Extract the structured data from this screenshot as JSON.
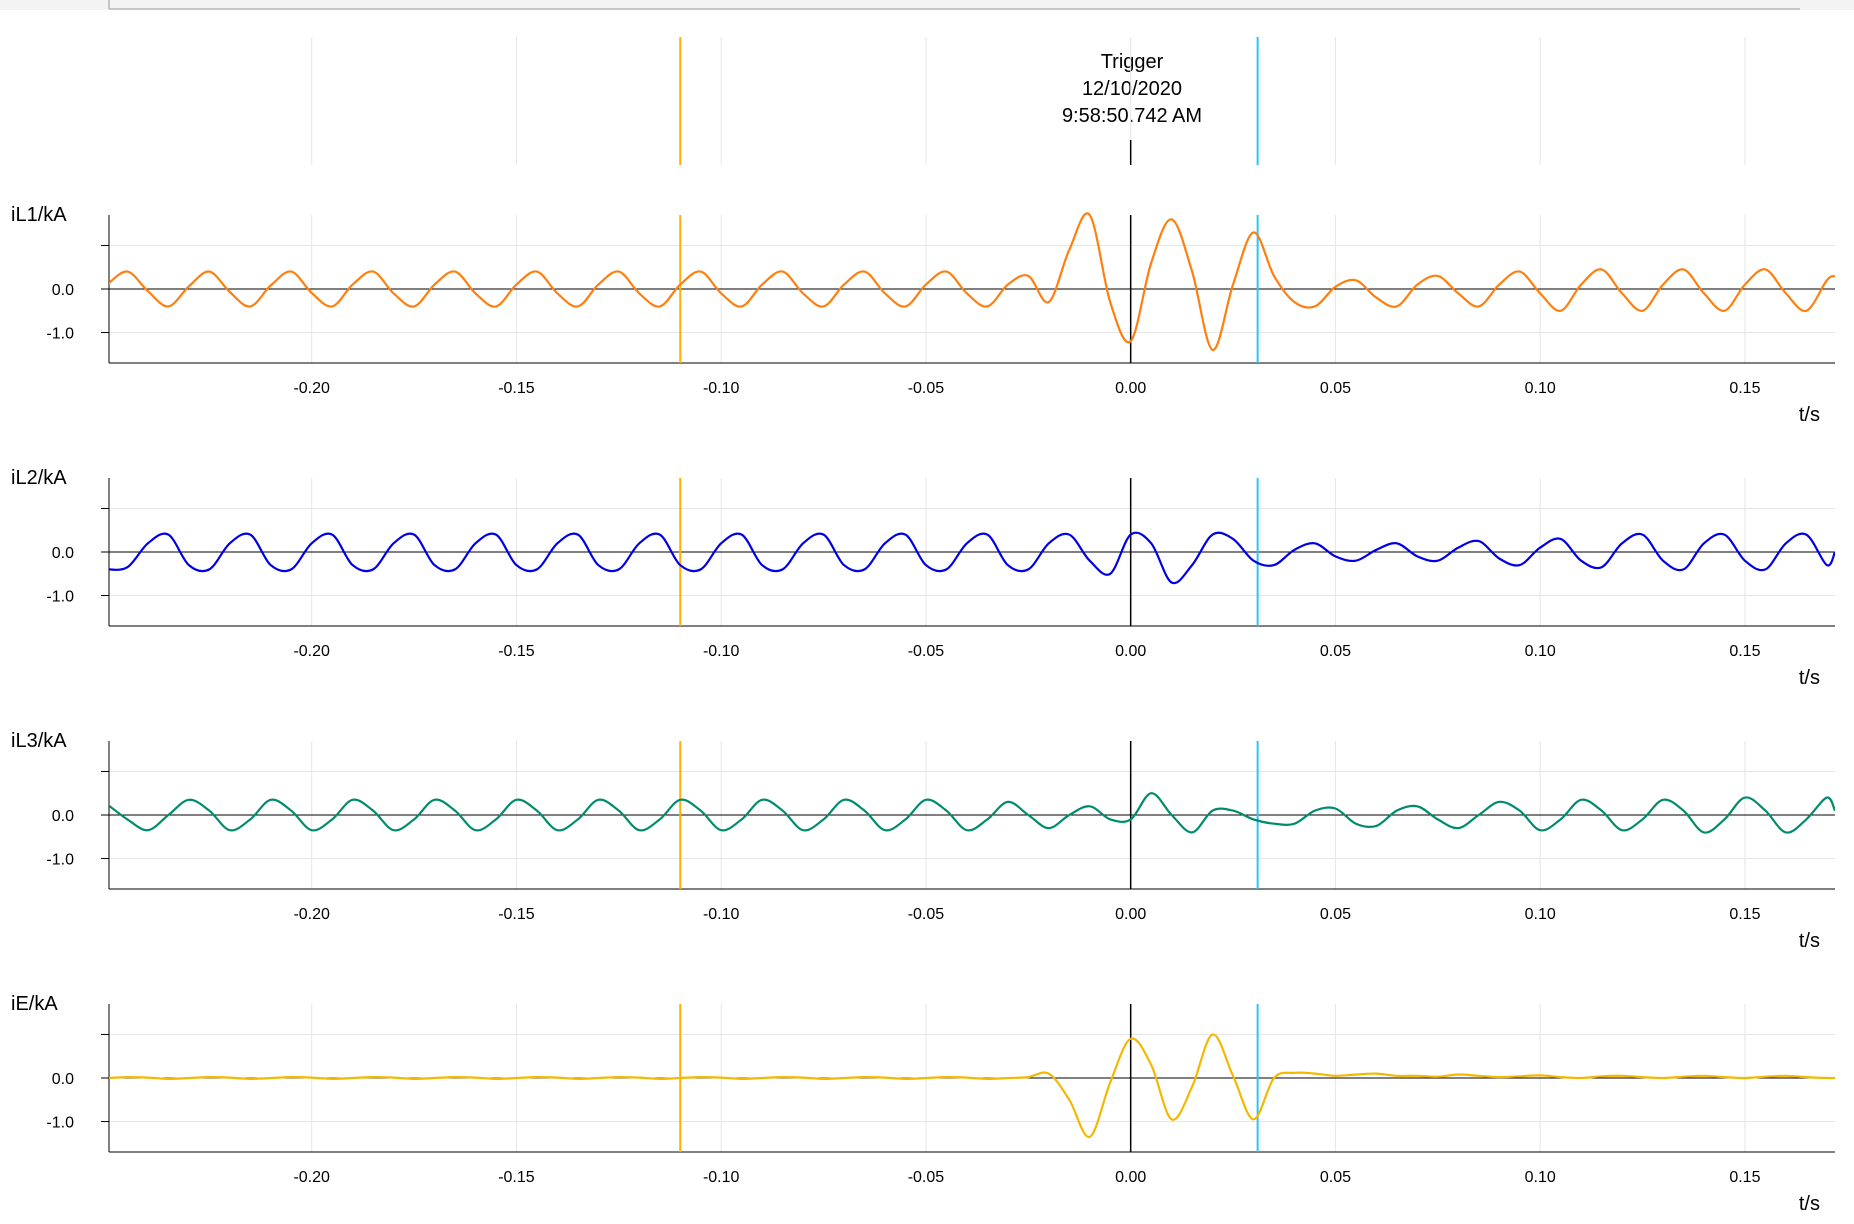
{
  "trigger": {
    "title": "Trigger",
    "date": "12/10/2020",
    "time": "9:58:50.742 AM"
  },
  "colors": {
    "cursor_a": "#ffb000",
    "cursor_b": "#29c5f6",
    "trigger_line": "#000000",
    "grid": "#e6e6e6",
    "axis": "#000000"
  },
  "cursors": {
    "cursor_a_t": -0.11,
    "cursor_b_t": 0.031,
    "trigger_t": 0.0
  },
  "chart_data": [
    {
      "type": "line",
      "ylabel": "iL1/kA",
      "xlabel": "t/s",
      "color": "#ff7f0e",
      "xlim": [
        -0.2495,
        0.172
      ],
      "ylim": [
        -1.7,
        1.7
      ],
      "x_ticks": [
        -0.2,
        -0.15,
        -0.1,
        -0.05,
        0.0,
        0.05,
        0.1,
        0.15
      ],
      "x_tick_labels": [
        "-0.20",
        "-0.15",
        "-0.10",
        "-0.05",
        "0.00",
        "0.05",
        "0.10",
        "0.15"
      ],
      "y_ticks": [
        0.0,
        -1.0
      ],
      "y_tick_labels": [
        "0.0",
        "-1.0"
      ],
      "x": [
        -0.25,
        -0.245,
        -0.24,
        -0.235,
        -0.23,
        -0.225,
        -0.22,
        -0.215,
        -0.21,
        -0.205,
        -0.2,
        -0.195,
        -0.19,
        -0.185,
        -0.18,
        -0.175,
        -0.17,
        -0.165,
        -0.16,
        -0.155,
        -0.15,
        -0.145,
        -0.14,
        -0.135,
        -0.13,
        -0.125,
        -0.12,
        -0.115,
        -0.11,
        -0.105,
        -0.1,
        -0.095,
        -0.09,
        -0.085,
        -0.08,
        -0.075,
        -0.07,
        -0.065,
        -0.06,
        -0.055,
        -0.05,
        -0.045,
        -0.04,
        -0.035,
        -0.03,
        -0.025,
        -0.02,
        -0.015,
        -0.01,
        -0.005,
        0,
        0.005,
        0.01,
        0.015,
        0.02,
        0.025,
        0.03,
        0.035,
        0.04,
        0.045,
        0.05,
        0.055,
        0.06,
        0.065,
        0.07,
        0.075,
        0.08,
        0.085,
        0.09,
        0.095,
        0.1,
        0.105,
        0.11,
        0.115,
        0.12,
        0.125,
        0.13,
        0.135,
        0.14,
        0.145,
        0.15,
        0.155,
        0.16,
        0.165,
        0.17,
        0.172
      ],
      "y": [
        0.1,
        0.4,
        -0.05,
        -0.4,
        0.06,
        0.4,
        -0.07,
        -0.4,
        0.08,
        0.4,
        -0.09,
        -0.4,
        0.1,
        0.4,
        -0.1,
        -0.4,
        0.1,
        0.4,
        -0.1,
        -0.4,
        0.1,
        0.4,
        -0.1,
        -0.4,
        0.1,
        0.4,
        -0.1,
        -0.4,
        0.1,
        0.4,
        -0.1,
        -0.4,
        0.1,
        0.4,
        -0.1,
        -0.4,
        0.1,
        0.4,
        -0.1,
        -0.4,
        0.1,
        0.4,
        -0.1,
        -0.4,
        0.1,
        0.3,
        -0.3,
        0.9,
        1.7,
        -0.3,
        -1.2,
        0.6,
        1.6,
        0.4,
        -1.4,
        0.1,
        1.3,
        0.3,
        -0.3,
        -0.4,
        0.05,
        0.2,
        -0.2,
        -0.4,
        0.1,
        0.3,
        -0.1,
        -0.4,
        0.1,
        0.4,
        -0.1,
        -0.5,
        0.1,
        0.45,
        -0.1,
        -0.5,
        0.1,
        0.45,
        -0.1,
        -0.5,
        0.1,
        0.45,
        -0.1,
        -0.5,
        0.2,
        0.3
      ]
    },
    {
      "type": "line",
      "ylabel": "iL2/kA",
      "xlabel": "t/s",
      "color": "#0000e6",
      "xlim": [
        -0.2495,
        0.172
      ],
      "ylim": [
        -1.7,
        1.7
      ],
      "x_ticks": [
        -0.2,
        -0.15,
        -0.1,
        -0.05,
        0.0,
        0.05,
        0.1,
        0.15
      ],
      "x_tick_labels": [
        "-0.20",
        "-0.15",
        "-0.10",
        "-0.05",
        "0.00",
        "0.05",
        "0.10",
        "0.15"
      ],
      "y_ticks": [
        0.0,
        -1.0
      ],
      "y_tick_labels": [
        "0.0",
        "-1.0"
      ],
      "x": [
        -0.25,
        -0.245,
        -0.24,
        -0.235,
        -0.23,
        -0.225,
        -0.22,
        -0.215,
        -0.21,
        -0.205,
        -0.2,
        -0.195,
        -0.19,
        -0.185,
        -0.18,
        -0.175,
        -0.17,
        -0.165,
        -0.16,
        -0.155,
        -0.15,
        -0.145,
        -0.14,
        -0.135,
        -0.13,
        -0.125,
        -0.12,
        -0.115,
        -0.11,
        -0.105,
        -0.1,
        -0.095,
        -0.09,
        -0.085,
        -0.08,
        -0.075,
        -0.07,
        -0.065,
        -0.06,
        -0.055,
        -0.05,
        -0.045,
        -0.04,
        -0.035,
        -0.03,
        -0.025,
        -0.02,
        -0.015,
        -0.01,
        -0.005,
        0,
        0.005,
        0.01,
        0.015,
        0.02,
        0.025,
        0.03,
        0.035,
        0.04,
        0.045,
        0.05,
        0.055,
        0.06,
        0.065,
        0.07,
        0.075,
        0.08,
        0.085,
        0.09,
        0.095,
        0.1,
        0.105,
        0.11,
        0.115,
        0.12,
        0.125,
        0.13,
        0.135,
        0.14,
        0.145,
        0.15,
        0.155,
        0.16,
        0.165,
        0.17,
        0.172
      ],
      "y": [
        -0.4,
        -0.35,
        0.2,
        0.4,
        -0.3,
        -0.4,
        0.2,
        0.4,
        -0.3,
        -0.4,
        0.2,
        0.4,
        -0.3,
        -0.4,
        0.2,
        0.4,
        -0.3,
        -0.4,
        0.2,
        0.4,
        -0.3,
        -0.4,
        0.2,
        0.4,
        -0.3,
        -0.4,
        0.2,
        0.4,
        -0.3,
        -0.4,
        0.2,
        0.4,
        -0.3,
        -0.4,
        0.2,
        0.4,
        -0.3,
        -0.4,
        0.2,
        0.4,
        -0.3,
        -0.4,
        0.2,
        0.4,
        -0.3,
        -0.4,
        0.2,
        0.4,
        -0.2,
        -0.5,
        0.4,
        0.2,
        -0.7,
        -0.3,
        0.4,
        0.3,
        -0.2,
        -0.3,
        0.05,
        0.2,
        -0.1,
        -0.2,
        0.05,
        0.2,
        -0.1,
        -0.2,
        0.1,
        0.25,
        -0.15,
        -0.3,
        0.1,
        0.3,
        -0.2,
        -0.35,
        0.2,
        0.4,
        -0.2,
        -0.4,
        0.2,
        0.4,
        -0.2,
        -0.4,
        0.2,
        0.4,
        -0.3,
        0.0
      ]
    },
    {
      "type": "line",
      "ylabel": "iL3/kA",
      "xlabel": "t/s",
      "color": "#008c6c",
      "xlim": [
        -0.2495,
        0.172
      ],
      "ylim": [
        -1.7,
        1.7
      ],
      "x_ticks": [
        -0.2,
        -0.15,
        -0.1,
        -0.05,
        0.0,
        0.05,
        0.1,
        0.15
      ],
      "x_tick_labels": [
        "-0.20",
        "-0.15",
        "-0.10",
        "-0.05",
        "0.00",
        "0.05",
        "0.10",
        "0.15"
      ],
      "y_ticks": [
        0.0,
        -1.0
      ],
      "y_tick_labels": [
        "0.0",
        "-1.0"
      ],
      "x": [
        -0.25,
        -0.245,
        -0.24,
        -0.235,
        -0.23,
        -0.225,
        -0.22,
        -0.215,
        -0.21,
        -0.205,
        -0.2,
        -0.195,
        -0.19,
        -0.185,
        -0.18,
        -0.175,
        -0.17,
        -0.165,
        -0.16,
        -0.155,
        -0.15,
        -0.145,
        -0.14,
        -0.135,
        -0.13,
        -0.125,
        -0.12,
        -0.115,
        -0.11,
        -0.105,
        -0.1,
        -0.095,
        -0.09,
        -0.085,
        -0.08,
        -0.075,
        -0.07,
        -0.065,
        -0.06,
        -0.055,
        -0.05,
        -0.045,
        -0.04,
        -0.035,
        -0.03,
        -0.025,
        -0.02,
        -0.015,
        -0.01,
        -0.005,
        0,
        0.005,
        0.01,
        0.015,
        0.02,
        0.025,
        0.03,
        0.035,
        0.04,
        0.045,
        0.05,
        0.055,
        0.06,
        0.065,
        0.07,
        0.075,
        0.08,
        0.085,
        0.09,
        0.095,
        0.1,
        0.105,
        0.11,
        0.115,
        0.12,
        0.125,
        0.13,
        0.135,
        0.14,
        0.145,
        0.15,
        0.155,
        0.16,
        0.165,
        0.17,
        0.172
      ],
      "y": [
        0.25,
        -0.1,
        -0.35,
        0.0,
        0.35,
        0.1,
        -0.35,
        -0.1,
        0.35,
        0.1,
        -0.35,
        -0.1,
        0.35,
        0.1,
        -0.35,
        -0.1,
        0.35,
        0.1,
        -0.35,
        -0.1,
        0.35,
        0.1,
        -0.35,
        -0.1,
        0.35,
        0.1,
        -0.35,
        -0.1,
        0.35,
        0.1,
        -0.35,
        -0.1,
        0.35,
        0.1,
        -0.35,
        -0.1,
        0.35,
        0.1,
        -0.35,
        -0.1,
        0.35,
        0.1,
        -0.35,
        -0.1,
        0.3,
        0.0,
        -0.3,
        0.0,
        0.2,
        -0.1,
        -0.1,
        0.5,
        0.0,
        -0.4,
        0.1,
        0.1,
        -0.1,
        -0.2,
        -0.2,
        0.1,
        0.15,
        -0.2,
        -0.25,
        0.1,
        0.2,
        -0.1,
        -0.3,
        0.0,
        0.3,
        0.1,
        -0.35,
        -0.1,
        0.35,
        0.1,
        -0.35,
        -0.1,
        0.35,
        0.1,
        -0.4,
        -0.1,
        0.4,
        0.1,
        -0.4,
        -0.1,
        0.4,
        0.1
      ]
    },
    {
      "type": "line",
      "ylabel": "iE/kA",
      "xlabel": "t/s",
      "color": "#f5b800",
      "xlim": [
        -0.2495,
        0.172
      ],
      "ylim": [
        -1.7,
        1.7
      ],
      "x_ticks": [
        -0.2,
        -0.15,
        -0.1,
        -0.05,
        0.0,
        0.05,
        0.1,
        0.15
      ],
      "x_tick_labels": [
        "-0.20",
        "-0.15",
        "-0.10",
        "-0.05",
        "0.00",
        "0.05",
        "0.10",
        "0.15"
      ],
      "y_ticks": [
        0.0,
        -1.0
      ],
      "y_tick_labels": [
        "0.0",
        "-1.0"
      ],
      "x": [
        -0.25,
        -0.245,
        -0.24,
        -0.235,
        -0.23,
        -0.225,
        -0.22,
        -0.215,
        -0.21,
        -0.205,
        -0.2,
        -0.195,
        -0.19,
        -0.185,
        -0.18,
        -0.175,
        -0.17,
        -0.165,
        -0.16,
        -0.155,
        -0.15,
        -0.145,
        -0.14,
        -0.135,
        -0.13,
        -0.125,
        -0.12,
        -0.115,
        -0.11,
        -0.105,
        -0.1,
        -0.095,
        -0.09,
        -0.085,
        -0.08,
        -0.075,
        -0.07,
        -0.065,
        -0.06,
        -0.055,
        -0.05,
        -0.045,
        -0.04,
        -0.035,
        -0.03,
        -0.025,
        -0.02,
        -0.015,
        -0.01,
        -0.005,
        0,
        0.005,
        0.01,
        0.015,
        0.02,
        0.025,
        0.03,
        0.035,
        0.04,
        0.045,
        0.05,
        0.055,
        0.06,
        0.065,
        0.07,
        0.075,
        0.08,
        0.085,
        0.09,
        0.095,
        0.1,
        0.105,
        0.11,
        0.115,
        0.12,
        0.125,
        0.13,
        0.135,
        0.14,
        0.145,
        0.15,
        0.155,
        0.16,
        0.165,
        0.17,
        0.172
      ],
      "y": [
        0.0,
        0.02,
        0.01,
        -0.02,
        0.0,
        0.02,
        0.01,
        -0.02,
        0.0,
        0.02,
        0.01,
        -0.02,
        0.0,
        0.02,
        0.01,
        -0.02,
        0.0,
        0.02,
        0.01,
        -0.02,
        0.0,
        0.02,
        0.01,
        -0.02,
        0.0,
        0.02,
        0.01,
        -0.02,
        0.0,
        0.02,
        0.01,
        -0.02,
        0.0,
        0.02,
        0.01,
        -0.02,
        0.0,
        0.02,
        0.01,
        -0.02,
        0.0,
        0.02,
        0.01,
        -0.02,
        0.0,
        0.02,
        0.1,
        -0.5,
        -1.35,
        -0.1,
        0.9,
        0.3,
        -0.95,
        -0.2,
        1.0,
        0.05,
        -0.95,
        0.0,
        0.12,
        0.1,
        0.05,
        0.08,
        0.1,
        0.05,
        0.05,
        0.03,
        0.08,
        0.05,
        0.02,
        0.04,
        0.06,
        0.02,
        0.0,
        0.04,
        0.05,
        0.02,
        0.0,
        0.03,
        0.05,
        0.02,
        0.0,
        0.03,
        0.05,
        0.02,
        0.0,
        0.0
      ]
    }
  ]
}
